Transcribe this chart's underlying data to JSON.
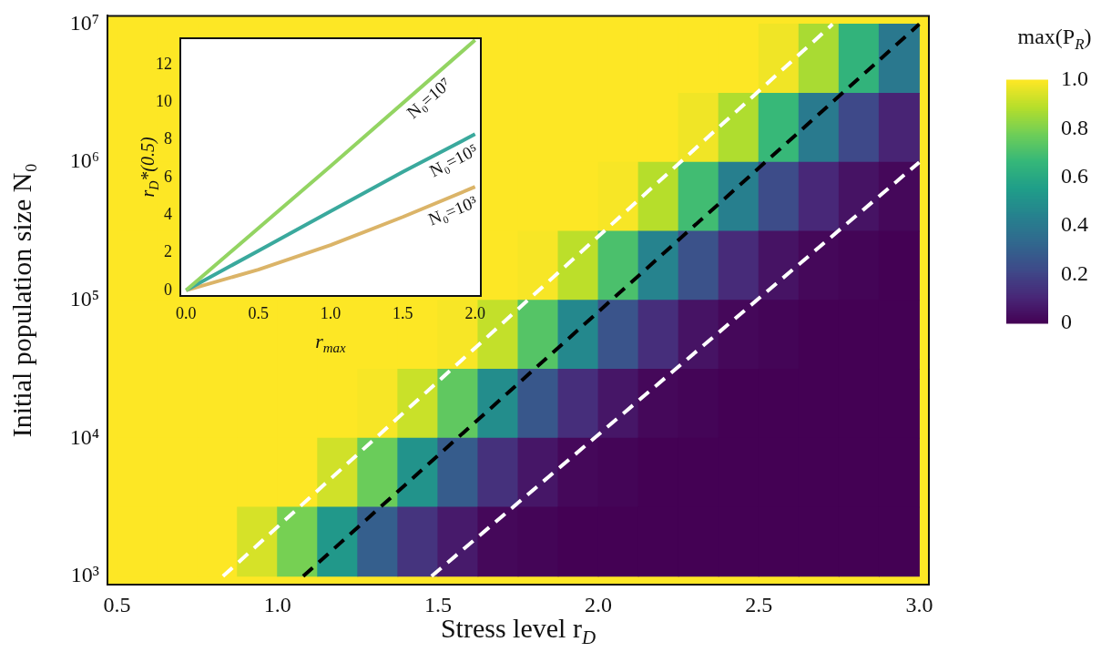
{
  "chart_data": [
    {
      "type": "heatmap",
      "xlabel": "Stress level r$_{D}$",
      "ylabel": "Initial population size N₀",
      "clabel": "max(P$_{R}$)",
      "x": [
        0.5625,
        0.6875,
        0.8125,
        0.9375,
        1.0625,
        1.1875,
        1.3125,
        1.4375,
        1.5625,
        1.6875,
        1.8125,
        1.9375,
        2.0625,
        2.1875,
        2.3125,
        2.4375,
        2.5625,
        2.6875,
        2.8125,
        2.9375
      ],
      "y": [
        5623413,
        1778279,
        562341,
        177828,
        56234,
        17783,
        5623,
        1778
      ],
      "cells": [
        [
          1,
          1,
          null,
          null,
          null,
          null,
          null,
          null,
          null,
          1,
          1,
          1,
          1,
          1,
          1,
          1,
          0.98,
          0.87,
          0.65,
          0.4
        ],
        [
          1,
          1,
          null,
          null,
          null,
          null,
          null,
          null,
          null,
          1,
          1,
          1,
          1,
          1,
          0.98,
          0.88,
          0.67,
          0.41,
          0.22,
          0.1
        ],
        [
          1,
          1,
          null,
          null,
          null,
          null,
          null,
          null,
          null,
          1,
          1,
          1,
          0.99,
          0.89,
          0.69,
          0.43,
          0.23,
          0.11,
          0.05,
          0.02
        ],
        [
          1,
          1,
          null,
          null,
          null,
          null,
          null,
          null,
          null,
          1,
          0.99,
          0.9,
          0.71,
          0.45,
          0.25,
          0.12,
          0.05,
          0.02,
          0.01,
          0
        ],
        [
          1,
          1,
          1,
          1,
          1,
          1,
          1,
          1,
          0.99,
          0.91,
          0.73,
          0.47,
          0.26,
          0.13,
          0.05,
          0.02,
          0.01,
          0,
          0,
          0
        ],
        [
          1,
          1,
          1,
          1,
          1,
          1,
          0.99,
          0.92,
          0.75,
          0.49,
          0.27,
          0.13,
          0.06,
          0.02,
          0.01,
          0,
          0,
          0,
          0,
          0
        ],
        [
          1,
          1,
          1,
          1,
          1,
          0.93,
          0.77,
          0.51,
          0.29,
          0.14,
          0.06,
          0.02,
          0.01,
          0,
          0,
          0,
          0,
          0,
          0,
          0
        ],
        [
          1,
          1,
          1,
          0.94,
          0.79,
          0.53,
          0.3,
          0.15,
          0.07,
          0.02,
          0.01,
          0,
          0,
          0,
          0,
          0,
          0,
          0,
          0,
          0
        ]
      ],
      "xlim": [
        0.47,
        3.03
      ],
      "ylim": [
        870,
        11500000
      ],
      "log": "y",
      "xticks": [
        {
          "value": 0.5,
          "label": "0.5"
        },
        {
          "value": 1,
          "label": "1.0"
        },
        {
          "value": 1.5,
          "label": "1.5"
        },
        {
          "value": 2,
          "label": "2.0"
        },
        {
          "value": 2.5,
          "label": "2.5"
        },
        {
          "value": 3,
          "label": "3.0"
        }
      ],
      "yticks": [
        {
          "value": 1000,
          "label": "10³"
        },
        {
          "value": 10000,
          "label": "10⁴"
        },
        {
          "value": 100000,
          "label": "10⁵"
        },
        {
          "value": 1000000,
          "label": "10⁶"
        },
        {
          "value": 10000000,
          "label": "10⁷"
        }
      ],
      "clim": [
        0,
        1
      ],
      "cticks": [
        {
          "value": 0,
          "label": "0"
        },
        {
          "value": 0.2,
          "label": "0.2"
        },
        {
          "value": 0.4,
          "label": "0.4"
        },
        {
          "value": 0.6,
          "label": "0.6"
        },
        {
          "value": 0.8,
          "label": "0.8"
        },
        {
          "value": 1,
          "label": "1.0"
        }
      ],
      "marker": "none",
      "line_style": "dashed",
      "series": [
        {
          "type": "line",
          "color": "#ffffff",
          "x": [
            0.83,
            2.73
          ],
          "values": [
            1000,
            10000000
          ]
        },
        {
          "type": "line",
          "color": "#000000",
          "x": [
            1.08,
            3.0
          ],
          "values": [
            1000,
            10000000
          ]
        },
        {
          "type": "line",
          "color": "#ffffff",
          "x": [
            1.48,
            3.0
          ],
          "values": [
            1000,
            1000000
          ]
        }
      ]
    },
    {
      "type": "line",
      "xlabel": "r$_{max}$",
      "ylabel": "r$_{D}$*(0.5)",
      "marker": "none",
      "line_style": "solid",
      "xlim": [
        -0.04,
        2.04
      ],
      "ylim": [
        -0.3,
        13.4
      ],
      "xticks": [
        {
          "value": 0,
          "label": "0.0"
        },
        {
          "value": 0.5,
          "label": "0.5"
        },
        {
          "value": 1,
          "label": "1.0"
        },
        {
          "value": 1.5,
          "label": "1.5"
        },
        {
          "value": 2,
          "label": "2.0"
        }
      ],
      "yticks": [
        0,
        2,
        4,
        6,
        8,
        10,
        12
      ],
      "series": [
        {
          "name": "N₀=10⁷",
          "color": "#93d462",
          "x": [
            0,
            1,
            2
          ],
          "values": [
            0,
            6.6,
            13.3
          ]
        },
        {
          "name": "N₀=10⁵",
          "color": "#3aa99d",
          "x": [
            0,
            0.5,
            1,
            1.5,
            2
          ],
          "values": [
            0,
            2.1,
            4.2,
            6.3,
            8.3
          ]
        },
        {
          "name": "N₀=10³",
          "color": "#dbb468",
          "x": [
            0,
            0.5,
            1,
            1.5,
            2
          ],
          "values": [
            0,
            1.1,
            2.4,
            3.9,
            5.5
          ]
        }
      ]
    }
  ]
}
